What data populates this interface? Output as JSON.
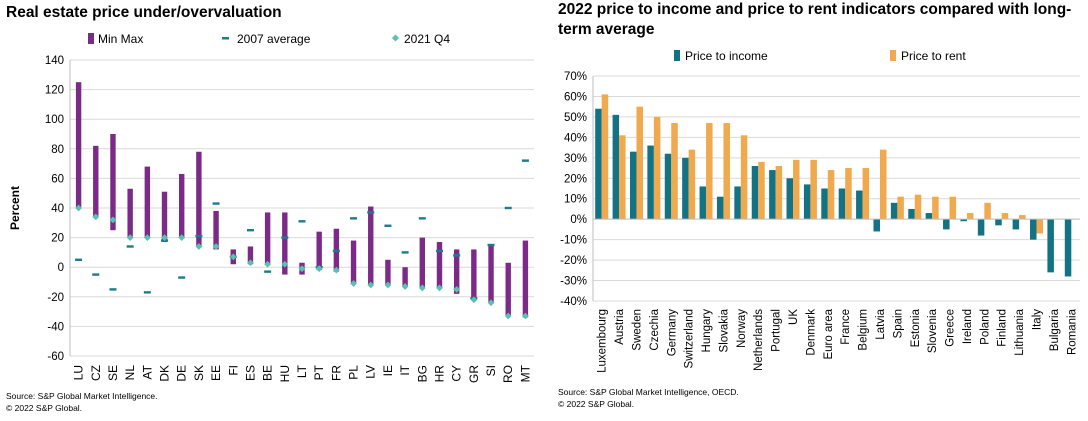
{
  "colors": {
    "min_max": "#7b2b87",
    "avg_2007": "#1d7b8c",
    "q4_2021": "#5cc0b1",
    "price_to_income": "#137283",
    "price_to_rent": "#f1a94e",
    "grid": "#d9d9d9"
  },
  "left": {
    "title": "Real estate price under/overvaluation",
    "source_line1": "Source: S&P Global Market Intelligence.",
    "source_line2": "© 2022 S&P Global."
  },
  "right": {
    "title": "2022 price to income and price to rent indicators compared with long-term average",
    "source_line1": "Source: S&P Global Market Intelligence, OECD.",
    "source_line2": "© 2022 S&P Global."
  },
  "chart_data": [
    {
      "type": "range-dot",
      "title": "Real estate price under/overvaluation",
      "ylabel": "Percent",
      "xlabel": "",
      "ylim": [
        -60,
        140
      ],
      "yticks": [
        -60,
        -40,
        -20,
        0,
        20,
        40,
        60,
        80,
        100,
        120,
        140
      ],
      "grid": true,
      "legend": "top",
      "categories": [
        "LU",
        "CZ",
        "SE",
        "NL",
        "AT",
        "DK",
        "DE",
        "SK",
        "EE",
        "FI",
        "ES",
        "BE",
        "HU",
        "LT",
        "PT",
        "FR",
        "PL",
        "LV",
        "IE",
        "IT",
        "BG",
        "HR",
        "CY",
        "GR",
        "SI",
        "RO",
        "MT"
      ],
      "series": [
        {
          "name": "Min Max",
          "kind": "range",
          "min": [
            40,
            34,
            25,
            20,
            20,
            17,
            20,
            14,
            12,
            2,
            2,
            2,
            -5,
            -5,
            -2,
            -3,
            -11,
            -12,
            -12,
            -13,
            -14,
            -14,
            -18,
            -22,
            -24,
            -33,
            -34
          ],
          "max": [
            125,
            82,
            90,
            53,
            68,
            51,
            63,
            78,
            38,
            12,
            14,
            37,
            37,
            3,
            24,
            26,
            18,
            41,
            5,
            0,
            20,
            17,
            12,
            12,
            15,
            3,
            18
          ]
        },
        {
          "name": "2007 average",
          "kind": "dash",
          "values": [
            5,
            -5,
            -15,
            14,
            -17,
            18,
            -7,
            21,
            43,
            7,
            25,
            -3,
            20,
            31,
            0,
            11,
            33,
            37,
            28,
            10,
            33,
            11,
            8,
            -21,
            15,
            40,
            72
          ]
        },
        {
          "name": "2021 Q4",
          "kind": "dot",
          "values": [
            40,
            34,
            32,
            20,
            20,
            20,
            20,
            14,
            14,
            7,
            3,
            2,
            2,
            -1,
            -1,
            -2,
            -11,
            -12,
            -12,
            -13,
            -14,
            -14,
            -15,
            -22,
            -24,
            -33,
            -33
          ]
        }
      ]
    },
    {
      "type": "bar",
      "title": "2022 price to income and price to rent indicators compared with long-term average",
      "xlabel": "",
      "ylabel": "",
      "ylim": [
        -0.4,
        0.7
      ],
      "yticks": [
        -0.4,
        -0.3,
        -0.2,
        -0.1,
        0,
        0.1,
        0.2,
        0.3,
        0.4,
        0.5,
        0.6,
        0.7
      ],
      "ytick_labels": [
        "-40%",
        "-30%",
        "-20%",
        "-10%",
        "0%",
        "10%",
        "20%",
        "30%",
        "40%",
        "50%",
        "60%",
        "70%"
      ],
      "grid": true,
      "legend": "top",
      "categories": [
        "Luxembourg",
        "Austria",
        "Sweden",
        "Czechia",
        "Germany",
        "Switzerland",
        "Hungary",
        "Slovakia",
        "Norway",
        "Netherlands",
        "Portugal",
        "UK",
        "Denmark",
        "Euro area",
        "France",
        "Belgium",
        "Latvia",
        "Spain",
        "Estonia",
        "Slovenia",
        "Greece",
        "Ireland",
        "Poland",
        "Finland",
        "Lithuania",
        "Italy",
        "Bulgaria",
        "Romania"
      ],
      "series": [
        {
          "name": "Price to income",
          "values": [
            0.54,
            0.51,
            0.33,
            0.36,
            0.32,
            0.3,
            0.16,
            0.11,
            0.16,
            0.26,
            0.24,
            0.2,
            0.17,
            0.15,
            0.15,
            0.14,
            -0.06,
            0.08,
            0.05,
            0.03,
            -0.05,
            -0.01,
            -0.08,
            -0.03,
            -0.05,
            -0.1,
            -0.26,
            -0.28
          ]
        },
        {
          "name": "Price to rent",
          "values": [
            0.61,
            0.41,
            0.55,
            0.5,
            0.47,
            0.34,
            0.47,
            0.47,
            0.41,
            0.28,
            0.26,
            0.29,
            0.29,
            0.24,
            0.25,
            0.25,
            0.34,
            0.11,
            0.12,
            0.11,
            0.11,
            0.03,
            0.08,
            0.03,
            0.02,
            -0.07,
            0.0,
            0.0
          ]
        }
      ]
    }
  ]
}
